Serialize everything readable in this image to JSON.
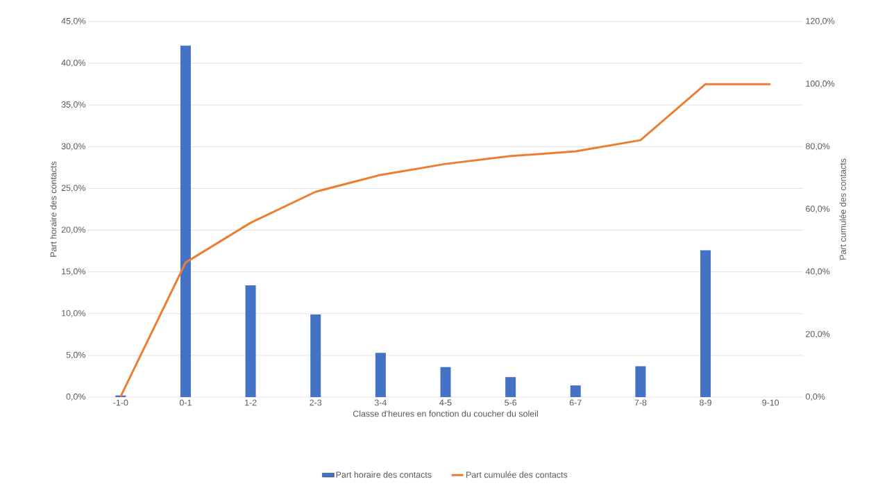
{
  "chart_data": {
    "type": "bar",
    "xlabel": "Classe d'heures en fonction du coucher du soleil",
    "ylabel": "Part horaire des contacts",
    "y2label": "Part cumulée des contacts",
    "categories": [
      "-1-0",
      "0-1",
      "1-2",
      "2-3",
      "3-4",
      "4-5",
      "5-6",
      "6-7",
      "7-8",
      "8-9",
      "9-10"
    ],
    "series": [
      {
        "name": "Part horaire des contacts",
        "color": "#4472c4",
        "values": [
          0.2,
          42.1,
          13.4,
          9.9,
          5.3,
          3.6,
          2.4,
          1.4,
          3.7,
          17.6,
          0
        ]
      },
      {
        "name": "Part cumulée des contacts",
        "type": "line",
        "axis": "y2",
        "color": "#ed7d31",
        "values": [
          0.2,
          43.0,
          55.7,
          65.6,
          71.0,
          74.5,
          77.0,
          78.5,
          82.1,
          100,
          100
        ]
      }
    ],
    "ylim": [
      0,
      45
    ],
    "yticks": [
      {
        "value": 0,
        "label": "0,0%"
      },
      {
        "value": 5,
        "label": "5,0%"
      },
      {
        "value": 10,
        "label": "10,0%"
      },
      {
        "value": 15,
        "label": "15,0%"
      },
      {
        "value": 20,
        "label": "20,0%"
      },
      {
        "value": 25,
        "label": "25,0%"
      },
      {
        "value": 30,
        "label": "30,0%"
      },
      {
        "value": 35,
        "label": "35,0%"
      },
      {
        "value": 40,
        "label": "40,0%"
      },
      {
        "value": 45,
        "label": "45,0%"
      }
    ],
    "y2lim": [
      0,
      120
    ],
    "y2ticks": [
      {
        "value": 0,
        "label": "0,0%"
      },
      {
        "value": 20,
        "label": "20,0%"
      },
      {
        "value": 40,
        "label": "40,0%"
      },
      {
        "value": 60,
        "label": "60,0%"
      },
      {
        "value": 80,
        "label": "80,0%"
      },
      {
        "value": 100,
        "label": "100,0%"
      },
      {
        "value": 120,
        "label": "120,0%"
      }
    ],
    "grid": "y",
    "legend": "bottom",
    "marker": "none",
    "line_style": "solid"
  }
}
